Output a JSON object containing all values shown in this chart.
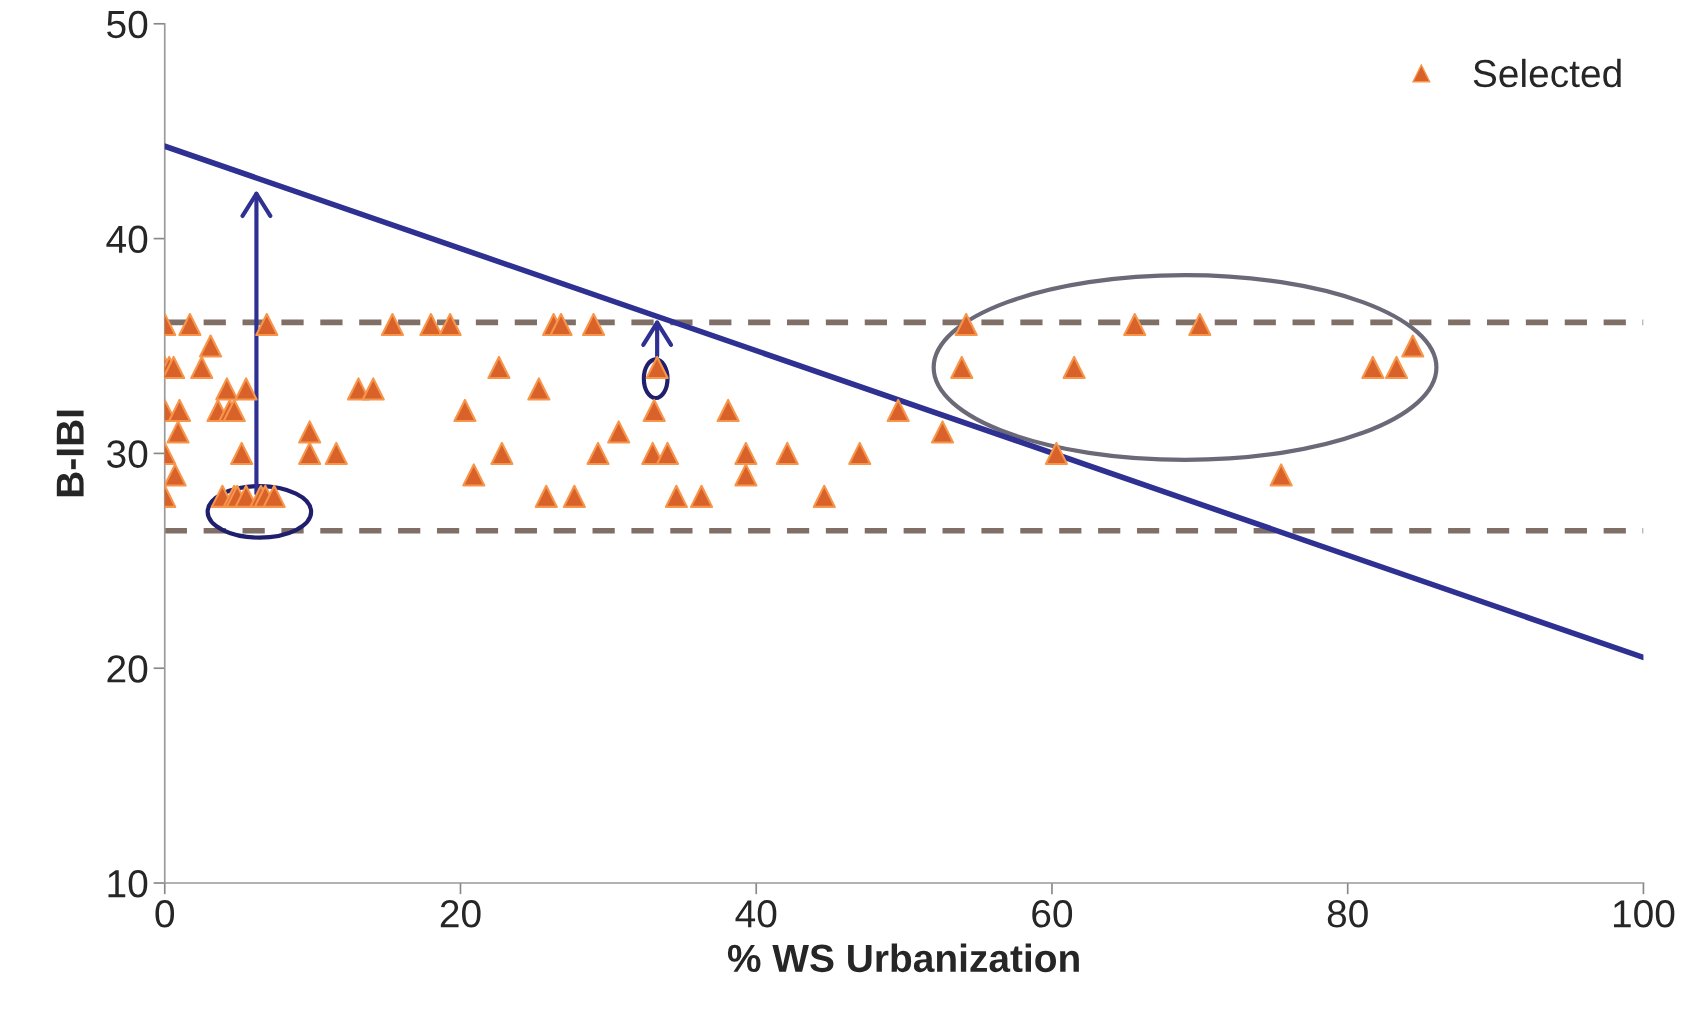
{
  "chart_data": {
    "type": "scatter",
    "xlabel": "% WS Urbanization",
    "ylabel": "B-IBI",
    "xlim": [
      0,
      100
    ],
    "xticks": [
      0,
      20,
      40,
      60,
      80,
      100
    ],
    "ylim": [
      10,
      50
    ],
    "yticks": [
      10,
      20,
      30,
      40,
      50
    ],
    "grid": false,
    "legend": "top right",
    "marker": "triangle",
    "series": [
      {
        "name": "Selected",
        "color": "#d8622a",
        "x": [
          0,
          1.7,
          6.9,
          15.4,
          18,
          19.3,
          26.3,
          26.8,
          29,
          54.2,
          65.6,
          70,
          3.1,
          84.4,
          0,
          0.3,
          0.6,
          2.5,
          22.6,
          33.3,
          53.9,
          61.5,
          81.7,
          83.3,
          4.2,
          5.5,
          13.1,
          14.1,
          25.3,
          0,
          1.0,
          3.6,
          4.4,
          4.7,
          20.3,
          33.1,
          38.1,
          49.6,
          0.9,
          9.8,
          30.7,
          52.6,
          0,
          5.2,
          9.8,
          11.6,
          22.8,
          29.3,
          33,
          34,
          39.3,
          42.1,
          47,
          60.3,
          0.7,
          20.9,
          39.3,
          75.5,
          0,
          3.9,
          4.7,
          4.9,
          5.5,
          6.5,
          6.8,
          7.4,
          25.8,
          27.7,
          34.6,
          36.3,
          44.6
        ],
        "values": [
          36,
          36,
          36,
          36,
          36,
          36,
          36,
          36,
          36,
          36,
          36,
          36,
          35,
          35,
          34,
          34,
          34,
          34,
          34,
          34,
          34,
          34,
          34,
          34,
          33,
          33,
          33,
          33,
          33,
          32,
          32,
          32,
          32,
          32,
          32,
          32,
          32,
          32,
          31,
          31,
          31,
          31,
          30,
          30,
          30,
          30,
          30,
          30,
          30,
          30,
          30,
          30,
          30,
          30,
          29,
          29,
          29,
          29,
          28,
          28,
          28,
          28,
          28,
          28,
          28,
          28,
          28,
          28,
          28,
          28,
          28
        ]
      },
      {
        "color": "#2e3192",
        "type": "line",
        "marker": "none",
        "x": [
          0,
          100
        ],
        "values": [
          44.3,
          20.5
        ]
      }
    ],
    "ref_lines": [
      {
        "axis": "y",
        "value": 36.1,
        "color": "#7f6f66",
        "line_style": "dashed"
      },
      {
        "axis": "y",
        "value": 26.4,
        "color": "#7f6f66",
        "line_style": "dashed"
      }
    ]
  }
}
